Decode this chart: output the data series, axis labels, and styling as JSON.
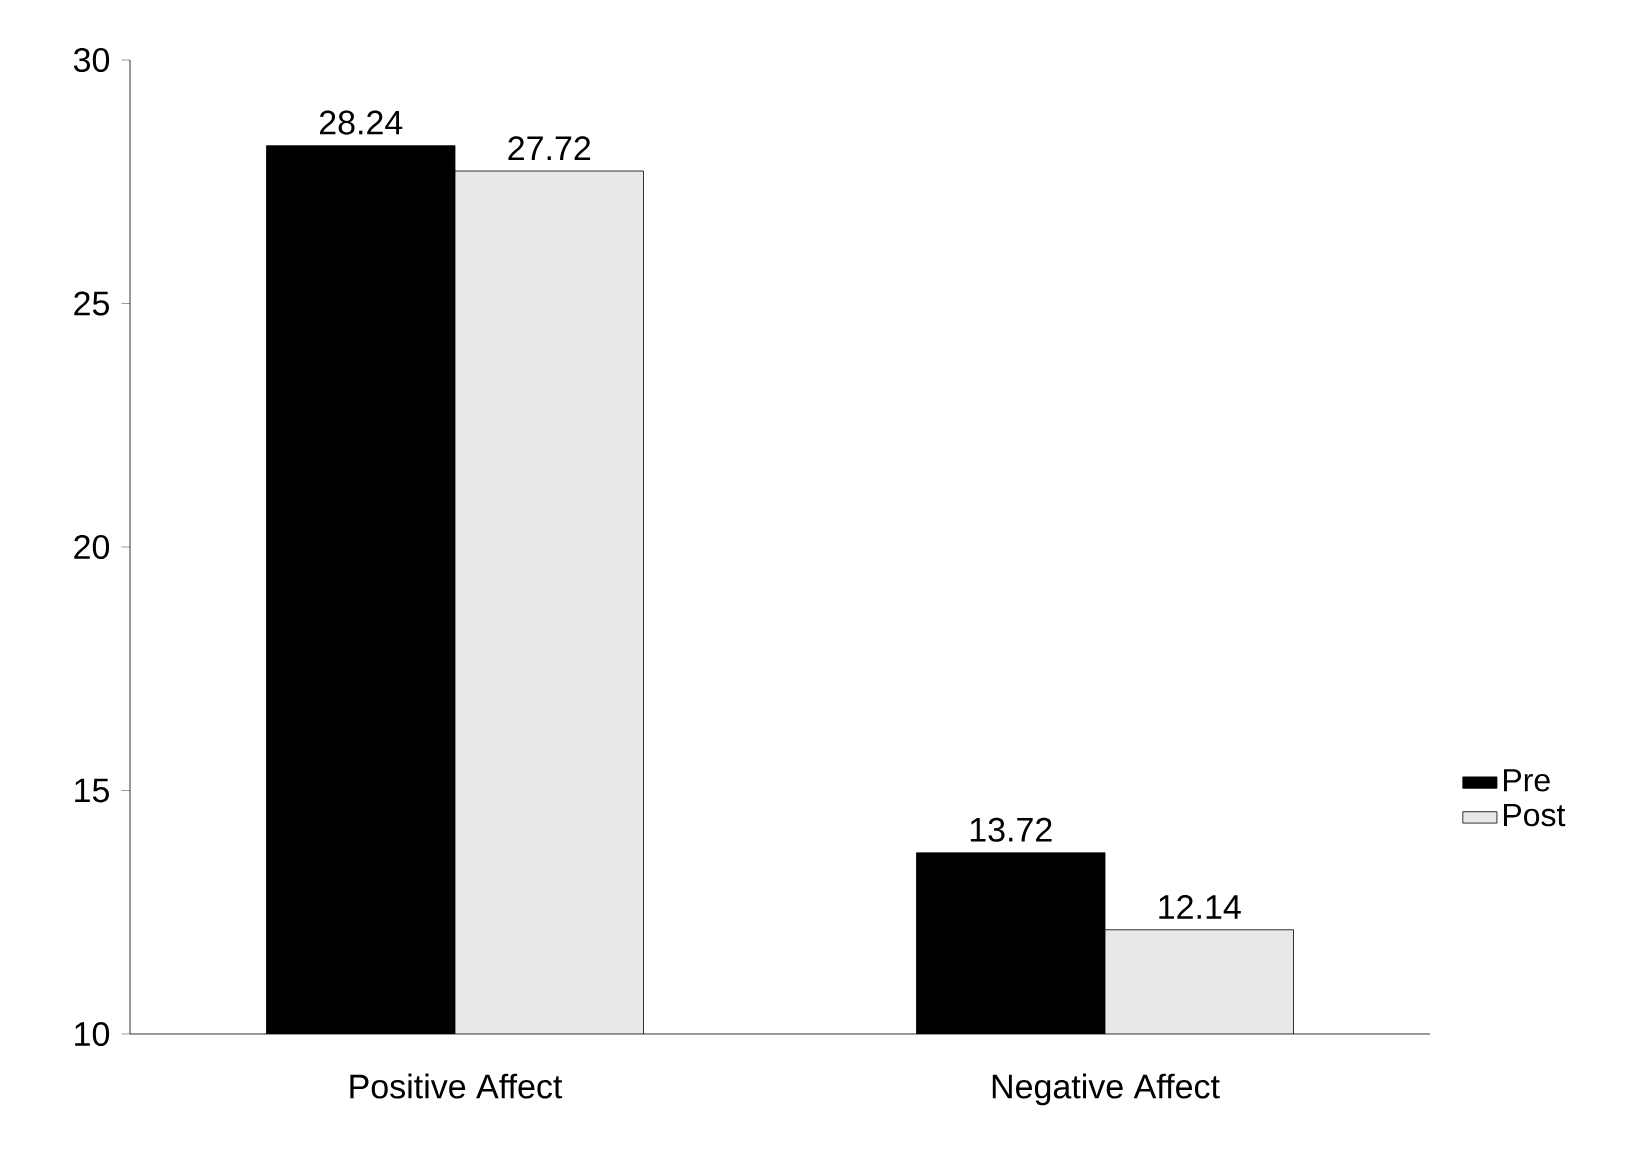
{
  "chart_data": {
    "type": "bar",
    "categories": [
      "Positive Affect",
      "Negative Affect"
    ],
    "series": [
      {
        "name": "Pre",
        "color": "#000000",
        "values": [
          28.24,
          13.72
        ]
      },
      {
        "name": "Post",
        "color": "#e8e8e8",
        "values": [
          27.72,
          12.14
        ]
      }
    ],
    "ylim": [
      10,
      30
    ],
    "yticks": [
      10,
      15,
      20,
      25,
      30
    ],
    "data_labels": true,
    "legend": "right",
    "grid": false
  }
}
